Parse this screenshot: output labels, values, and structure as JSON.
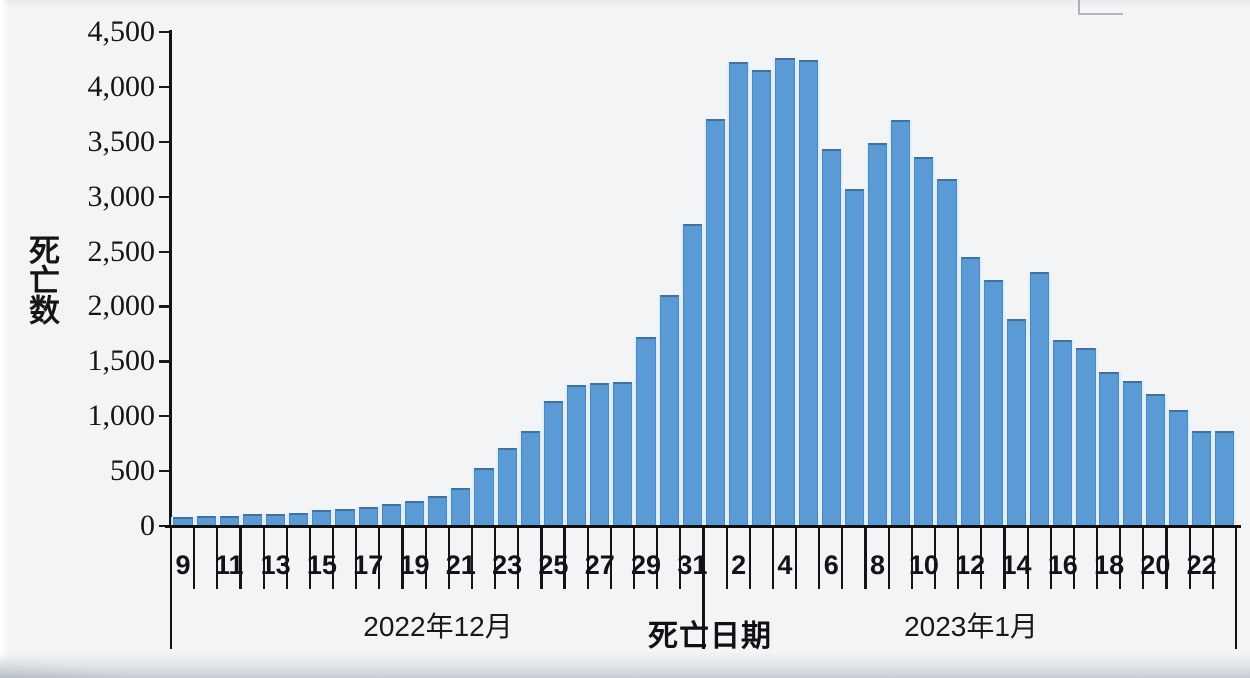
{
  "chart_data": {
    "type": "bar",
    "title": "",
    "ylabel": "死亡数",
    "xlabel": "死亡日期",
    "ylim": [
      0,
      4500
    ],
    "y_tick_step": 500,
    "y_tick_labels": [
      "0",
      "500",
      "1,000",
      "1,500",
      "2,000",
      "2,500",
      "3,000",
      "3,500",
      "4,000",
      "4,500"
    ],
    "grid": "off",
    "legend": "none",
    "bar_color": "#5b9bd5",
    "groups": [
      {
        "label": "2022年12月",
        "days": 23
      },
      {
        "label": "2023年1月",
        "days": 23
      }
    ],
    "categories": [
      "2022-12-09",
      "2022-12-10",
      "2022-12-11",
      "2022-12-12",
      "2022-12-13",
      "2022-12-14",
      "2022-12-15",
      "2022-12-16",
      "2022-12-17",
      "2022-12-18",
      "2022-12-19",
      "2022-12-20",
      "2022-12-21",
      "2022-12-22",
      "2022-12-23",
      "2022-12-24",
      "2022-12-25",
      "2022-12-26",
      "2022-12-27",
      "2022-12-28",
      "2022-12-29",
      "2022-12-30",
      "2022-12-31",
      "2023-01-01",
      "2023-01-02",
      "2023-01-03",
      "2023-01-04",
      "2023-01-05",
      "2023-01-06",
      "2023-01-07",
      "2023-01-08",
      "2023-01-09",
      "2023-01-10",
      "2023-01-11",
      "2023-01-12",
      "2023-01-13",
      "2023-01-14",
      "2023-01-15",
      "2023-01-16",
      "2023-01-17",
      "2023-01-18",
      "2023-01-19",
      "2023-01-20",
      "2023-01-21",
      "2023-01-22",
      "2023-01-23"
    ],
    "day_labels": [
      "9",
      "",
      "11",
      "",
      "13",
      "",
      "15",
      "",
      "17",
      "",
      "19",
      "",
      "21",
      "",
      "23",
      "",
      "25",
      "",
      "27",
      "",
      "29",
      "",
      "31",
      "",
      "2",
      "",
      "4",
      "",
      "6",
      "",
      "8",
      "",
      "10",
      "",
      "12",
      "",
      "14",
      "",
      "16",
      "",
      "18",
      "",
      "20",
      "",
      "22",
      ""
    ],
    "values": [
      80,
      90,
      95,
      105,
      105,
      115,
      145,
      155,
      175,
      205,
      225,
      275,
      350,
      525,
      715,
      865,
      1140,
      1285,
      1305,
      1310,
      1720,
      2100,
      2750,
      3705,
      4225,
      4155,
      4265,
      4245,
      3435,
      3070,
      3485,
      3695,
      3365,
      3165,
      2455,
      2240,
      1890,
      2310,
      1690,
      1625,
      1405,
      1320,
      1200,
      1055,
      865,
      865
    ]
  }
}
